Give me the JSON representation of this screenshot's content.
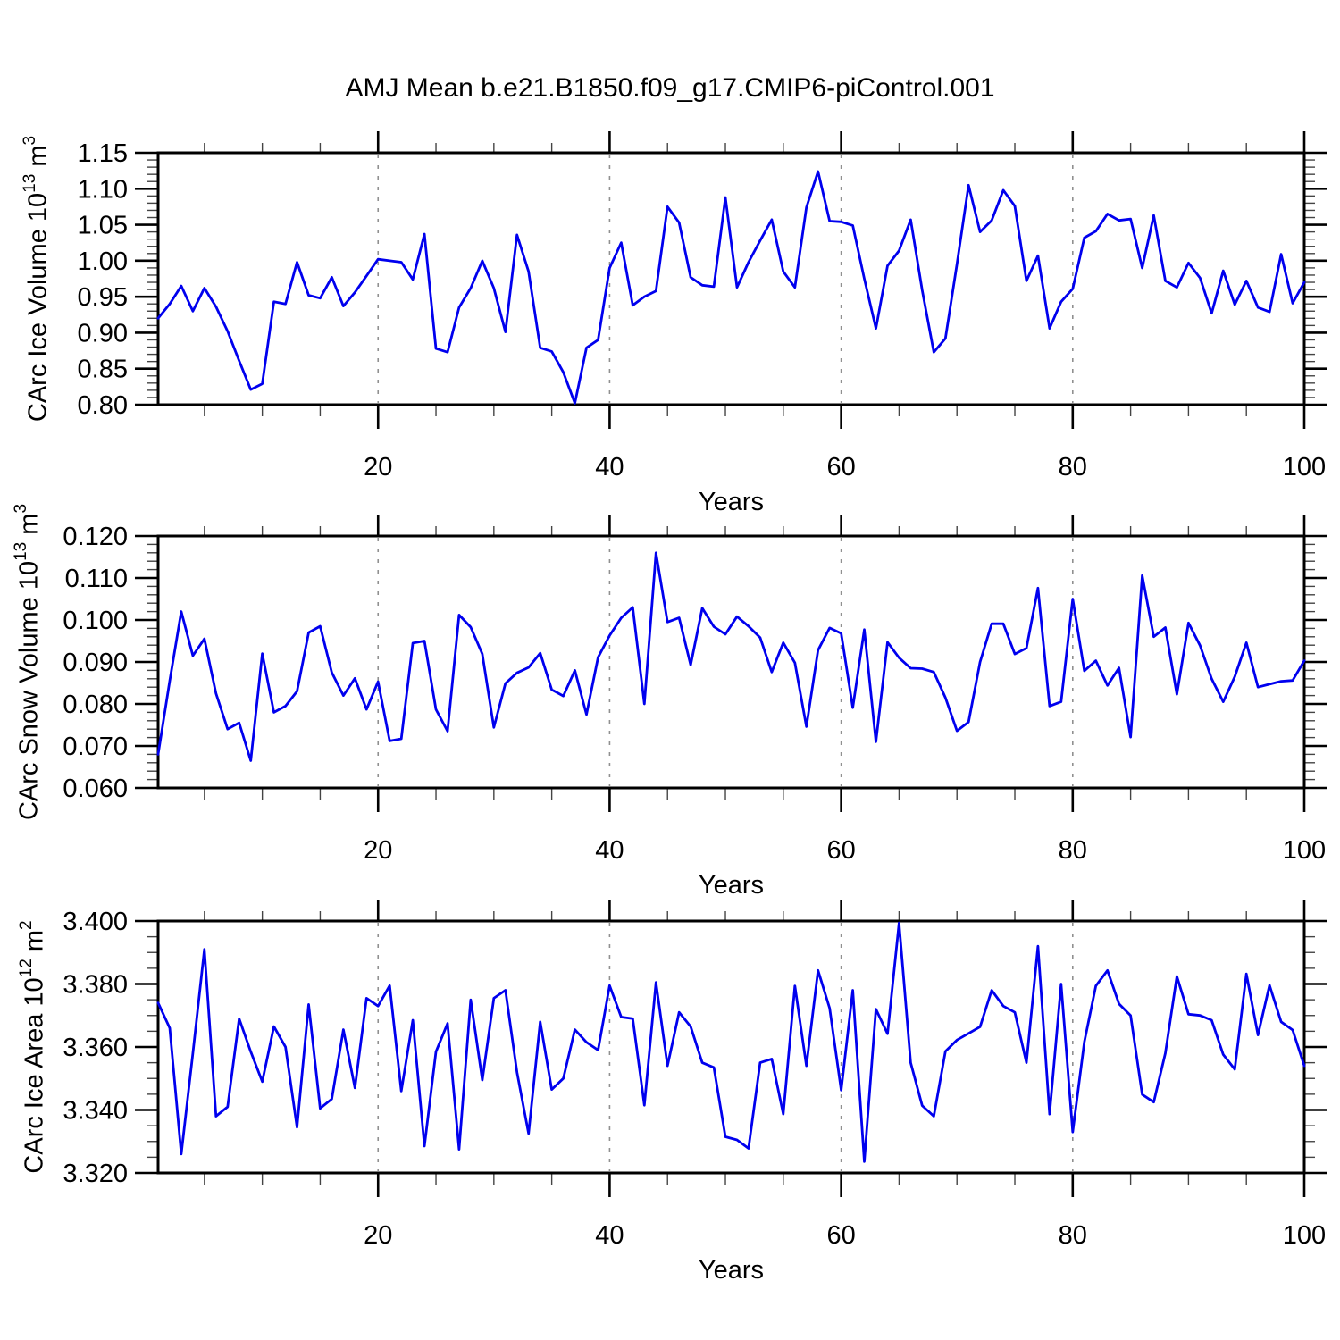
{
  "page": {
    "title": "AMJ Mean b.e21.B1850.f09_g17.CMIP6-piControl.001",
    "background_color": "#ffffff",
    "line_color": "#0000ee",
    "axis_color": "#000000",
    "grid_color": "#909090",
    "minor_tick_color": "#444444"
  },
  "chart_data": [
    {
      "type": "line",
      "series_name": "CArc Ice Volume",
      "ylabel_prefix": "CArc Ice Volume 10",
      "ylabel_exp": "13",
      "ylabel_unit": " m",
      "ylabel_unit_exp": "3",
      "xlabel": "Years",
      "xlim": [
        1,
        100
      ],
      "ylim": [
        0.8,
        1.15
      ],
      "ytick_labels": [
        "1.15",
        "1.10",
        "1.05",
        "1.00",
        "0.95",
        "0.90",
        "0.85",
        "0.80"
      ],
      "ytick_values": [
        1.15,
        1.1,
        1.05,
        1.0,
        0.95,
        0.9,
        0.85,
        0.8
      ],
      "y_minor_step": 0.01,
      "xticks": [
        20,
        40,
        60,
        80,
        100
      ],
      "x_minor_step": 5,
      "grid_x": [
        20,
        40,
        60,
        80
      ],
      "grid_on": true,
      "legend": "none",
      "values": [
        0.92,
        0.94,
        0.965,
        0.93,
        0.962,
        0.936,
        0.902,
        0.861,
        0.821,
        0.829,
        0.943,
        0.94,
        0.998,
        0.952,
        0.948,
        0.977,
        0.937,
        0.956,
        0.979,
        1.002,
        1.0,
        0.998,
        0.974,
        1.037,
        0.878,
        0.873,
        0.935,
        0.962,
        1.0,
        0.962,
        0.901,
        1.036,
        0.985,
        0.879,
        0.874,
        0.845,
        0.802,
        0.879,
        0.89,
        0.99,
        1.025,
        0.938,
        0.95,
        0.958,
        1.075,
        1.053,
        0.977,
        0.966,
        0.964,
        1.088,
        0.963,
        0.998,
        1.028,
        1.057,
        0.985,
        0.963,
        1.074,
        1.124,
        1.055,
        1.054,
        1.049,
        0.975,
        0.906,
        0.993,
        1.014,
        1.057,
        0.959,
        0.873,
        0.892,
        0.995,
        1.105,
        1.04,
        1.056,
        1.098,
        1.076,
        0.972,
        1.007,
        0.906,
        0.943,
        0.961,
        1.032,
        1.041,
        1.065,
        1.056,
        1.058,
        0.99,
        1.063,
        0.972,
        0.963,
        0.997,
        0.976,
        0.927,
        0.986,
        0.939,
        0.972,
        0.935,
        0.929,
        1.009,
        0.941,
        0.97
      ]
    },
    {
      "type": "line",
      "series_name": "CArc Snow Volume",
      "ylabel_prefix": "CArc Snow Volume 10",
      "ylabel_exp": "13",
      "ylabel_unit": " m",
      "ylabel_unit_exp": "3",
      "xlabel": "Years",
      "xlim": [
        1,
        100
      ],
      "ylim": [
        0.06,
        0.12
      ],
      "ytick_labels": [
        "0.120",
        "0.110",
        "0.100",
        "0.090",
        "0.080",
        "0.070",
        "0.060"
      ],
      "ytick_values": [
        0.12,
        0.11,
        0.1,
        0.09,
        0.08,
        0.07,
        0.06
      ],
      "y_minor_step": 0.002,
      "xticks": [
        20,
        40,
        60,
        80,
        100
      ],
      "x_minor_step": 5,
      "grid_x": [
        20,
        40,
        60,
        80
      ],
      "grid_on": true,
      "legend": "none",
      "values": [
        0.068,
        0.0855,
        0.102,
        0.0915,
        0.0955,
        0.0825,
        0.074,
        0.0755,
        0.0665,
        0.092,
        0.078,
        0.0795,
        0.083,
        0.097,
        0.0985,
        0.0875,
        0.082,
        0.0861,
        0.0787,
        0.0853,
        0.0712,
        0.0717,
        0.0945,
        0.095,
        0.0787,
        0.0735,
        0.1012,
        0.0983,
        0.0919,
        0.0744,
        0.0849,
        0.0874,
        0.0887,
        0.0921,
        0.0834,
        0.0819,
        0.088,
        0.0775,
        0.0911,
        0.0963,
        0.1005,
        0.103,
        0.08,
        0.116,
        0.0995,
        0.1005,
        0.0893,
        0.1028,
        0.0984,
        0.0966,
        0.1008,
        0.0985,
        0.0958,
        0.0876,
        0.0946,
        0.0898,
        0.0746,
        0.0928,
        0.0981,
        0.0968,
        0.0791,
        0.0977,
        0.071,
        0.0947,
        0.091,
        0.0885,
        0.0884,
        0.0876,
        0.0815,
        0.0736,
        0.0757,
        0.09,
        0.0991,
        0.0991,
        0.0919,
        0.0933,
        0.1076,
        0.0795,
        0.0805,
        0.105,
        0.0879,
        0.0903,
        0.0844,
        0.0886,
        0.0721,
        0.1106,
        0.096,
        0.0982,
        0.0823,
        0.0993,
        0.0939,
        0.086,
        0.0805,
        0.0865,
        0.0946,
        0.084,
        0.0847,
        0.0854,
        0.0856,
        0.0903
      ]
    },
    {
      "type": "line",
      "series_name": "CArc Ice Area",
      "ylabel_prefix": "CArc Ice Area 10",
      "ylabel_exp": "12",
      "ylabel_unit": " m",
      "ylabel_unit_exp": "2",
      "xlabel": "Years",
      "xlim": [
        1,
        100
      ],
      "ylim": [
        3.32,
        3.4
      ],
      "ytick_labels": [
        "3.400",
        "3.380",
        "3.360",
        "3.340",
        "3.320"
      ],
      "ytick_values": [
        3.4,
        3.38,
        3.36,
        3.34,
        3.32
      ],
      "y_minor_step": 0.005,
      "xticks": [
        20,
        40,
        60,
        80,
        100
      ],
      "x_minor_step": 5,
      "grid_x": [
        20,
        40,
        60,
        80
      ],
      "grid_on": true,
      "legend": "none",
      "values": [
        3.374,
        3.366,
        3.326,
        3.358,
        3.391,
        3.338,
        3.341,
        3.369,
        3.3585,
        3.349,
        3.3665,
        3.36,
        3.3345,
        3.3735,
        3.3405,
        3.3435,
        3.3655,
        3.347,
        3.3755,
        3.373,
        3.3795,
        3.346,
        3.3685,
        3.3285,
        3.3585,
        3.3675,
        3.3275,
        3.375,
        3.3495,
        3.3755,
        3.378,
        3.352,
        3.3325,
        3.368,
        3.3465,
        3.35,
        3.3655,
        3.3615,
        3.359,
        3.3795,
        3.3695,
        3.369,
        3.3415,
        3.3805,
        3.354,
        3.371,
        3.3665,
        3.355,
        3.3535,
        3.3315,
        3.3305,
        3.3278,
        3.355,
        3.3562,
        3.3387,
        3.3794,
        3.354,
        3.3843,
        3.3723,
        3.3463,
        3.378,
        3.3236,
        3.372,
        3.3642,
        3.3994,
        3.355,
        3.3414,
        3.338,
        3.3586,
        3.3622,
        3.3643,
        3.3664,
        3.378,
        3.373,
        3.371,
        3.355,
        3.392,
        3.3387,
        3.38,
        3.333,
        3.3616,
        3.3794,
        3.3843,
        3.3737,
        3.37,
        3.3449,
        3.3425,
        3.358,
        3.3824,
        3.3704,
        3.37,
        3.3685,
        3.3576,
        3.3529,
        3.3832,
        3.3638,
        3.3796,
        3.368,
        3.3654,
        3.354
      ]
    }
  ]
}
